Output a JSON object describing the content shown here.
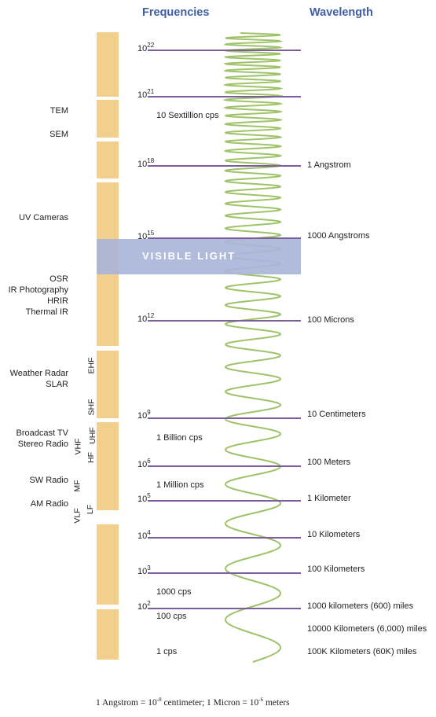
{
  "headers": {
    "frequencies": "Frequencies",
    "wavelength": "Wavelength"
  },
  "applications": {
    "tem": "TEM",
    "sem": "SEM",
    "uv_cameras": "UV Cameras",
    "osr": "OSR",
    "ir_photography": "IR Photography",
    "hrir": "HRIR",
    "thermal_ir": "Thermal IR",
    "weather_radar": "Weather Radar",
    "slar": "SLAR",
    "broadcast_tv": "Broadcast TV",
    "stereo_radio": "Stereo Radio",
    "sw_radio": "SW Radio",
    "am_radio": "AM Radio"
  },
  "bands": {
    "ehf": "EHF",
    "shf": "SHF",
    "uhf": "UHF",
    "vhf": "VHF",
    "hf": "HF",
    "mf": "MF",
    "lf": "LF",
    "vlf": "VLF"
  },
  "frequency_powers": [
    {
      "base": "10",
      "exp": "22"
    },
    {
      "base": "10",
      "exp": "21"
    },
    {
      "base": "10",
      "exp": "18"
    },
    {
      "base": "10",
      "exp": "15"
    },
    {
      "base": "10",
      "exp": "12"
    },
    {
      "base": "10",
      "exp": "9"
    },
    {
      "base": "10",
      "exp": "6"
    },
    {
      "base": "10",
      "exp": "5"
    },
    {
      "base": "10",
      "exp": "4"
    },
    {
      "base": "10",
      "exp": "3"
    },
    {
      "base": "10",
      "exp": "2"
    }
  ],
  "cps_labels": {
    "sextillion": "10 Sextillion cps",
    "billion": "1 Billion cps",
    "million": "1 Million cps",
    "thousand": "1000 cps",
    "hundred": "100 cps",
    "one": "1 cps"
  },
  "wavelengths": {
    "angstrom": "1 Angstrom",
    "thousand_angstroms": "1000 Angstroms",
    "microns": "100 Microns",
    "centimeters": "10 Centimeters",
    "meters": "100 Meters",
    "kilometer": "1 Kilometer",
    "ten_km": "10 Kilometers",
    "hundred_km": "100 Kilometers",
    "thousand_km": "1000 kilometers (600) miles",
    "ten_thousand_km": "10000 Kilometers (6,000) miles",
    "hundred_k_km": "100K Kilometers (60K) miles"
  },
  "visible_light": "VISIBLE LIGHT",
  "footnote": {
    "part1": "1 Angstrom = 10",
    "exp1": "-8",
    "part2": " centimeter; 1 Micron = 10",
    "exp2": "-6",
    "part3": " meters"
  },
  "colors": {
    "header": "#3f5ea3",
    "bar": "#f2cf8d",
    "line": "#7b5e9b",
    "wave": "#9fc36a",
    "visible_band": "#aab5d8"
  }
}
